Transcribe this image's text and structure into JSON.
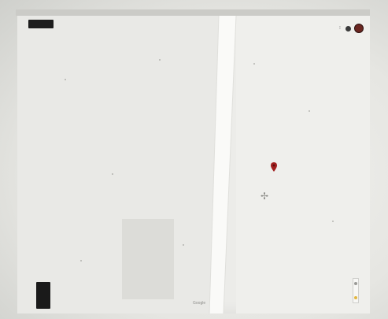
{
  "map": {
    "top_button_label": "",
    "road_label_1": "",
    "road_label_2": "",
    "road_label_3": "",
    "road_label_4": "",
    "marker_label": "",
    "crosshair_symbol": "✢",
    "google_logo": "Google",
    "attribution": "",
    "layers_label": ""
  },
  "icons": {
    "apps": "⁝",
    "marker": "map-pin-icon",
    "crosshair": "crosshair-icon",
    "notifications": "notification-icon",
    "avatar": "avatar"
  },
  "colors": {
    "marker": "#a11f1f",
    "road": "#fafaf8",
    "background": "#ecece9"
  }
}
